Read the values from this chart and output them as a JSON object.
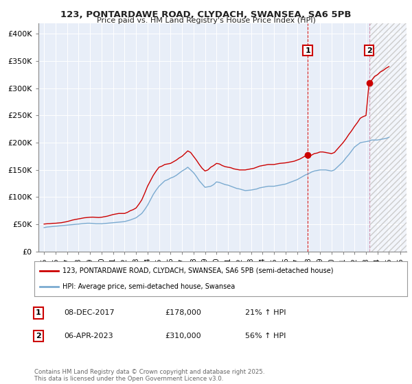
{
  "title1": "123, PONTARDAWE ROAD, CLYDACH, SWANSEA, SA6 5PB",
  "title2": "Price paid vs. HM Land Registry's House Price Index (HPI)",
  "ylim": [
    0,
    420000
  ],
  "xlim": [
    1994.5,
    2026.5
  ],
  "yticks": [
    0,
    50000,
    100000,
    150000,
    200000,
    250000,
    300000,
    350000,
    400000
  ],
  "ytick_labels": [
    "£0",
    "£50K",
    "£100K",
    "£150K",
    "£200K",
    "£250K",
    "£300K",
    "£350K",
    "£400K"
  ],
  "xticks": [
    1995,
    1996,
    1997,
    1998,
    1999,
    2000,
    2001,
    2002,
    2003,
    2004,
    2005,
    2006,
    2007,
    2008,
    2009,
    2010,
    2011,
    2012,
    2013,
    2014,
    2015,
    2016,
    2017,
    2018,
    2019,
    2020,
    2021,
    2022,
    2023,
    2024,
    2025,
    2026
  ],
  "marker1_x": 2017.93,
  "marker1_y": 178000,
  "marker2_x": 2023.27,
  "marker2_y": 310000,
  "vline1_x": 2017.93,
  "vline2_x": 2023.27,
  "hatch_start_x": 2023.27,
  "legend_line1": "123, PONTARDAWE ROAD, CLYDACH, SWANSEA, SA6 5PB (semi-detached house)",
  "legend_line2": "HPI: Average price, semi-detached house, Swansea",
  "annotation1_label": "1",
  "annotation1_date": "08-DEC-2017",
  "annotation1_price": "£178,000",
  "annotation1_hpi": "21% ↑ HPI",
  "annotation2_label": "2",
  "annotation2_date": "06-APR-2023",
  "annotation2_price": "£310,000",
  "annotation2_hpi": "56% ↑ HPI",
  "footer": "Contains HM Land Registry data © Crown copyright and database right 2025.\nThis data is licensed under the Open Government Licence v3.0.",
  "red_color": "#cc0000",
  "blue_color": "#7aaad0",
  "bg_color": "#ffffff",
  "plot_bg_color": "#e8eef8",
  "grid_color": "#ffffff",
  "hpi_red_line": [
    [
      1995.0,
      50500
    ],
    [
      1995.25,
      51000
    ],
    [
      1995.5,
      51200
    ],
    [
      1995.75,
      51800
    ],
    [
      1996.0,
      52000
    ],
    [
      1996.25,
      52500
    ],
    [
      1996.5,
      53000
    ],
    [
      1996.75,
      54000
    ],
    [
      1997.0,
      55000
    ],
    [
      1997.25,
      56500
    ],
    [
      1997.5,
      58000
    ],
    [
      1997.75,
      59000
    ],
    [
      1998.0,
      60000
    ],
    [
      1998.25,
      61000
    ],
    [
      1998.5,
      62000
    ],
    [
      1998.75,
      62500
    ],
    [
      1999.0,
      63000
    ],
    [
      1999.25,
      63200
    ],
    [
      1999.5,
      62800
    ],
    [
      1999.75,
      62500
    ],
    [
      2000.0,
      63000
    ],
    [
      2000.25,
      64000
    ],
    [
      2000.5,
      65000
    ],
    [
      2000.75,
      66500
    ],
    [
      2001.0,
      68000
    ],
    [
      2001.25,
      69000
    ],
    [
      2001.5,
      70000
    ],
    [
      2001.75,
      70000
    ],
    [
      2002.0,
      70000
    ],
    [
      2002.25,
      72000
    ],
    [
      2002.5,
      75000
    ],
    [
      2002.75,
      77000
    ],
    [
      2003.0,
      80000
    ],
    [
      2003.25,
      87000
    ],
    [
      2003.5,
      95000
    ],
    [
      2003.75,
      107000
    ],
    [
      2004.0,
      120000
    ],
    [
      2004.25,
      130000
    ],
    [
      2004.5,
      140000
    ],
    [
      2004.75,
      148000
    ],
    [
      2005.0,
      155000
    ],
    [
      2005.25,
      157000
    ],
    [
      2005.5,
      160000
    ],
    [
      2005.75,
      161000
    ],
    [
      2006.0,
      162000
    ],
    [
      2006.25,
      165000
    ],
    [
      2006.5,
      168000
    ],
    [
      2006.75,
      172000
    ],
    [
      2007.0,
      175000
    ],
    [
      2007.25,
      180000
    ],
    [
      2007.5,
      185000
    ],
    [
      2007.75,
      182000
    ],
    [
      2008.0,
      175000
    ],
    [
      2008.25,
      168000
    ],
    [
      2008.5,
      160000
    ],
    [
      2008.75,
      153000
    ],
    [
      2009.0,
      148000
    ],
    [
      2009.25,
      150000
    ],
    [
      2009.5,
      155000
    ],
    [
      2009.75,
      158000
    ],
    [
      2010.0,
      162000
    ],
    [
      2010.25,
      161000
    ],
    [
      2010.5,
      158000
    ],
    [
      2010.75,
      156000
    ],
    [
      2011.0,
      155000
    ],
    [
      2011.25,
      154000
    ],
    [
      2011.5,
      152000
    ],
    [
      2011.75,
      151000
    ],
    [
      2012.0,
      150000
    ],
    [
      2012.25,
      150000
    ],
    [
      2012.5,
      150000
    ],
    [
      2012.75,
      151000
    ],
    [
      2013.0,
      152000
    ],
    [
      2013.25,
      153000
    ],
    [
      2013.5,
      155000
    ],
    [
      2013.75,
      157000
    ],
    [
      2014.0,
      158000
    ],
    [
      2014.25,
      159000
    ],
    [
      2014.5,
      160000
    ],
    [
      2014.75,
      160000
    ],
    [
      2015.0,
      160000
    ],
    [
      2015.25,
      161000
    ],
    [
      2015.5,
      162000
    ],
    [
      2015.75,
      162500
    ],
    [
      2016.0,
      163000
    ],
    [
      2016.25,
      164000
    ],
    [
      2016.5,
      165000
    ],
    [
      2016.75,
      166000
    ],
    [
      2017.0,
      168000
    ],
    [
      2017.25,
      170000
    ],
    [
      2017.5,
      173000
    ],
    [
      2017.75,
      176000
    ],
    [
      2017.93,
      178000
    ],
    [
      2018.0,
      175000
    ],
    [
      2018.25,
      177000
    ],
    [
      2018.5,
      180000
    ],
    [
      2018.75,
      181000
    ],
    [
      2019.0,
      183000
    ],
    [
      2019.25,
      183000
    ],
    [
      2019.5,
      182000
    ],
    [
      2019.75,
      181000
    ],
    [
      2020.0,
      180000
    ],
    [
      2020.25,
      182000
    ],
    [
      2020.5,
      188000
    ],
    [
      2020.75,
      194000
    ],
    [
      2021.0,
      200000
    ],
    [
      2021.25,
      207000
    ],
    [
      2021.5,
      215000
    ],
    [
      2021.75,
      222000
    ],
    [
      2022.0,
      230000
    ],
    [
      2022.25,
      237000
    ],
    [
      2022.5,
      245000
    ],
    [
      2022.75,
      248000
    ],
    [
      2023.0,
      250000
    ],
    [
      2023.27,
      310000
    ],
    [
      2023.5,
      315000
    ],
    [
      2023.75,
      322000
    ],
    [
      2024.0,
      325000
    ],
    [
      2024.25,
      330000
    ],
    [
      2024.5,
      333000
    ],
    [
      2024.75,
      337000
    ],
    [
      2025.0,
      340000
    ]
  ],
  "hpi_blue_line": [
    [
      1995.0,
      44000
    ],
    [
      1995.25,
      45000
    ],
    [
      1995.5,
      45500
    ],
    [
      1995.75,
      46000
    ],
    [
      1996.0,
      46500
    ],
    [
      1996.25,
      47000
    ],
    [
      1996.5,
      47500
    ],
    [
      1996.75,
      48000
    ],
    [
      1997.0,
      48500
    ],
    [
      1997.25,
      49000
    ],
    [
      1997.5,
      49500
    ],
    [
      1997.75,
      50000
    ],
    [
      1998.0,
      50500
    ],
    [
      1998.25,
      51000
    ],
    [
      1998.5,
      51500
    ],
    [
      1998.75,
      52000
    ],
    [
      1999.0,
      52000
    ],
    [
      1999.25,
      51500
    ],
    [
      1999.5,
      51000
    ],
    [
      1999.75,
      51000
    ],
    [
      2000.0,
      51000
    ],
    [
      2000.25,
      51500
    ],
    [
      2000.5,
      52000
    ],
    [
      2000.75,
      52500
    ],
    [
      2001.0,
      53000
    ],
    [
      2001.25,
      53500
    ],
    [
      2001.5,
      54000
    ],
    [
      2001.75,
      54500
    ],
    [
      2002.0,
      55000
    ],
    [
      2002.25,
      56500
    ],
    [
      2002.5,
      58000
    ],
    [
      2002.75,
      60000
    ],
    [
      2003.0,
      62000
    ],
    [
      2003.25,
      66000
    ],
    [
      2003.5,
      70000
    ],
    [
      2003.75,
      77000
    ],
    [
      2004.0,
      85000
    ],
    [
      2004.25,
      95000
    ],
    [
      2004.5,
      105000
    ],
    [
      2004.75,
      113000
    ],
    [
      2005.0,
      120000
    ],
    [
      2005.25,
      125000
    ],
    [
      2005.5,
      130000
    ],
    [
      2005.75,
      132000
    ],
    [
      2006.0,
      135000
    ],
    [
      2006.25,
      137000
    ],
    [
      2006.5,
      140000
    ],
    [
      2006.75,
      144000
    ],
    [
      2007.0,
      148000
    ],
    [
      2007.25,
      151000
    ],
    [
      2007.5,
      155000
    ],
    [
      2007.75,
      150000
    ],
    [
      2008.0,
      145000
    ],
    [
      2008.25,
      138000
    ],
    [
      2008.5,
      130000
    ],
    [
      2008.75,
      124000
    ],
    [
      2009.0,
      118000
    ],
    [
      2009.25,
      119000
    ],
    [
      2009.5,
      120000
    ],
    [
      2009.75,
      123000
    ],
    [
      2010.0,
      128000
    ],
    [
      2010.25,
      127000
    ],
    [
      2010.5,
      125000
    ],
    [
      2010.75,
      123000
    ],
    [
      2011.0,
      122000
    ],
    [
      2011.25,
      120000
    ],
    [
      2011.5,
      118000
    ],
    [
      2011.75,
      116000
    ],
    [
      2012.0,
      115000
    ],
    [
      2012.25,
      113500
    ],
    [
      2012.5,
      112000
    ],
    [
      2012.75,
      112500
    ],
    [
      2013.0,
      113000
    ],
    [
      2013.25,
      114000
    ],
    [
      2013.5,
      115000
    ],
    [
      2013.75,
      117000
    ],
    [
      2014.0,
      118000
    ],
    [
      2014.25,
      119000
    ],
    [
      2014.5,
      120000
    ],
    [
      2014.75,
      120000
    ],
    [
      2015.0,
      120000
    ],
    [
      2015.25,
      121000
    ],
    [
      2015.5,
      122000
    ],
    [
      2015.75,
      123000
    ],
    [
      2016.0,
      124000
    ],
    [
      2016.25,
      126000
    ],
    [
      2016.5,
      128000
    ],
    [
      2016.75,
      130000
    ],
    [
      2017.0,
      132000
    ],
    [
      2017.25,
      135000
    ],
    [
      2017.5,
      138000
    ],
    [
      2017.75,
      141000
    ],
    [
      2018.0,
      143000
    ],
    [
      2018.25,
      146000
    ],
    [
      2018.5,
      148000
    ],
    [
      2018.75,
      149000
    ],
    [
      2019.0,
      150000
    ],
    [
      2019.25,
      150000
    ],
    [
      2019.5,
      150000
    ],
    [
      2019.75,
      149000
    ],
    [
      2020.0,
      148000
    ],
    [
      2020.25,
      150000
    ],
    [
      2020.5,
      155000
    ],
    [
      2020.75,
      160000
    ],
    [
      2021.0,
      165000
    ],
    [
      2021.25,
      172000
    ],
    [
      2021.5,
      178000
    ],
    [
      2021.75,
      185000
    ],
    [
      2022.0,
      192000
    ],
    [
      2022.25,
      196000
    ],
    [
      2022.5,
      200000
    ],
    [
      2022.75,
      201000
    ],
    [
      2023.0,
      202000
    ],
    [
      2023.25,
      203000
    ],
    [
      2023.5,
      205000
    ],
    [
      2023.75,
      205000
    ],
    [
      2024.0,
      205000
    ],
    [
      2024.25,
      206000
    ],
    [
      2024.5,
      207000
    ],
    [
      2024.75,
      208000
    ],
    [
      2025.0,
      210000
    ]
  ]
}
